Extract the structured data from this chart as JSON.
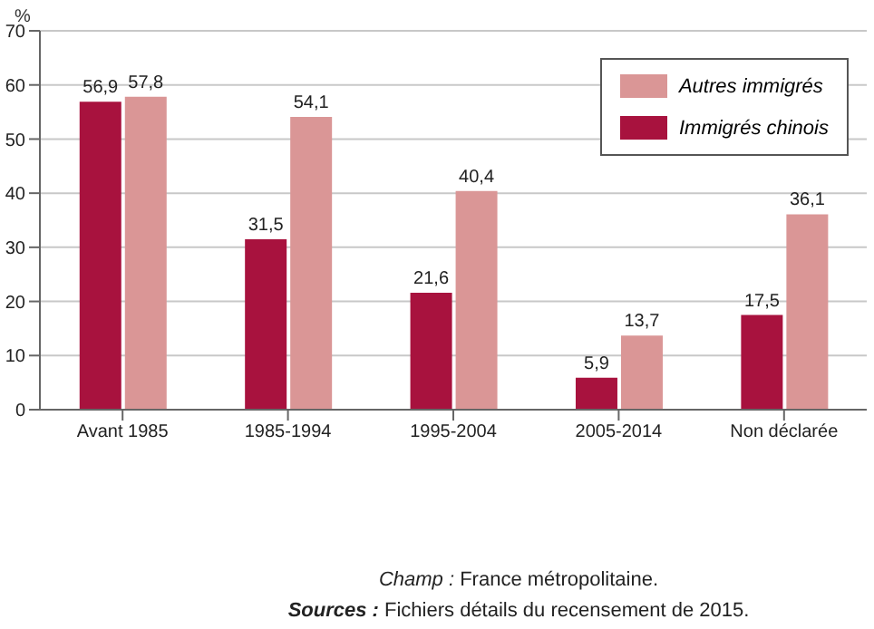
{
  "chart_data": {
    "type": "bar",
    "ylabel": "%",
    "categories": [
      "Avant 1985",
      "1985-1994",
      "1995-2004",
      "2005-2014",
      "Non déclarée"
    ],
    "series": [
      {
        "name": "Immigrés chinois",
        "color": "#a8123e",
        "values": [
          56.9,
          31.5,
          21.6,
          5.9,
          17.5
        ],
        "value_labels": [
          "56,9",
          "31,5",
          "21,6",
          "5,9",
          "17,5"
        ]
      },
      {
        "name": "Autres immigrés",
        "color": "#da9696",
        "values": [
          57.8,
          54.1,
          40.4,
          13.7,
          36.1
        ],
        "value_labels": [
          "57,8",
          "54,1",
          "40,4",
          "13,7",
          "36,1"
        ]
      }
    ],
    "ylim": [
      0,
      70
    ],
    "yticks": [
      0,
      10,
      20,
      30,
      40,
      50,
      60,
      70
    ],
    "grid": "y",
    "legend": "top right",
    "annotations": [
      "Champ : France métropolitaine.",
      "Sources : Fichiers détails du recensement de 2015."
    ]
  }
}
